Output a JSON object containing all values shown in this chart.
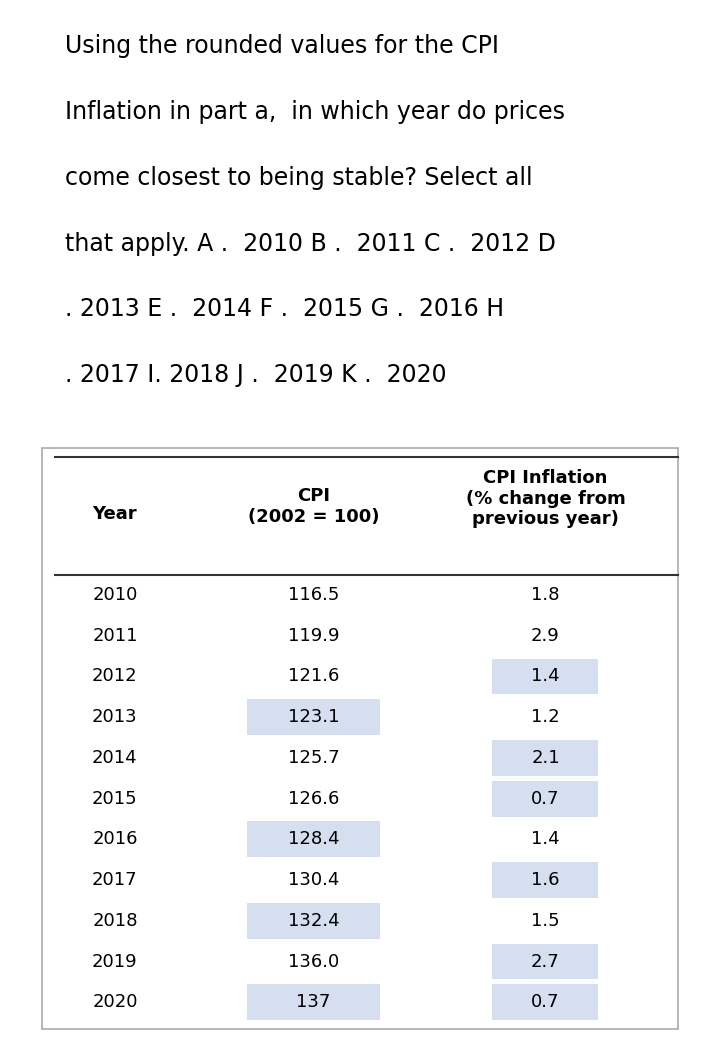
{
  "question_text": [
    "Using the rounded values for the CPI",
    "Inflation in part a,  in which year do prices",
    "come closest to being stable? Select all",
    "that apply. A .  2010 B .  2011 C .  2012 D",
    ". 2013 E .  2014 F .  2015 G .  2016 H",
    ". 2017 I. 2018 J .  2019 K .  2020"
  ],
  "years": [
    "2010",
    "2011",
    "2012",
    "2013",
    "2014",
    "2015",
    "2016",
    "2017",
    "2018",
    "2019",
    "2020"
  ],
  "cpi_values": [
    "116.5",
    "119.9",
    "121.6",
    "123.1",
    "125.7",
    "126.6",
    "128.4",
    "130.4",
    "132.4",
    "136.0",
    "137"
  ],
  "inflation_values": [
    "1.8",
    "2.9",
    "1.4",
    "1.2",
    "2.1",
    "0.7",
    "1.4",
    "1.6",
    "1.5",
    "2.7",
    "0.7"
  ],
  "highlight_color": "#d6dff0",
  "highlight_cpi": [
    3,
    6,
    8,
    10
  ],
  "highlight_inflation": [
    2,
    4,
    5,
    7,
    9,
    10
  ],
  "bg_color": "#ffffff",
  "text_color": "#000000",
  "font_size_question": 17,
  "font_size_table": 13,
  "font_size_header": 13
}
